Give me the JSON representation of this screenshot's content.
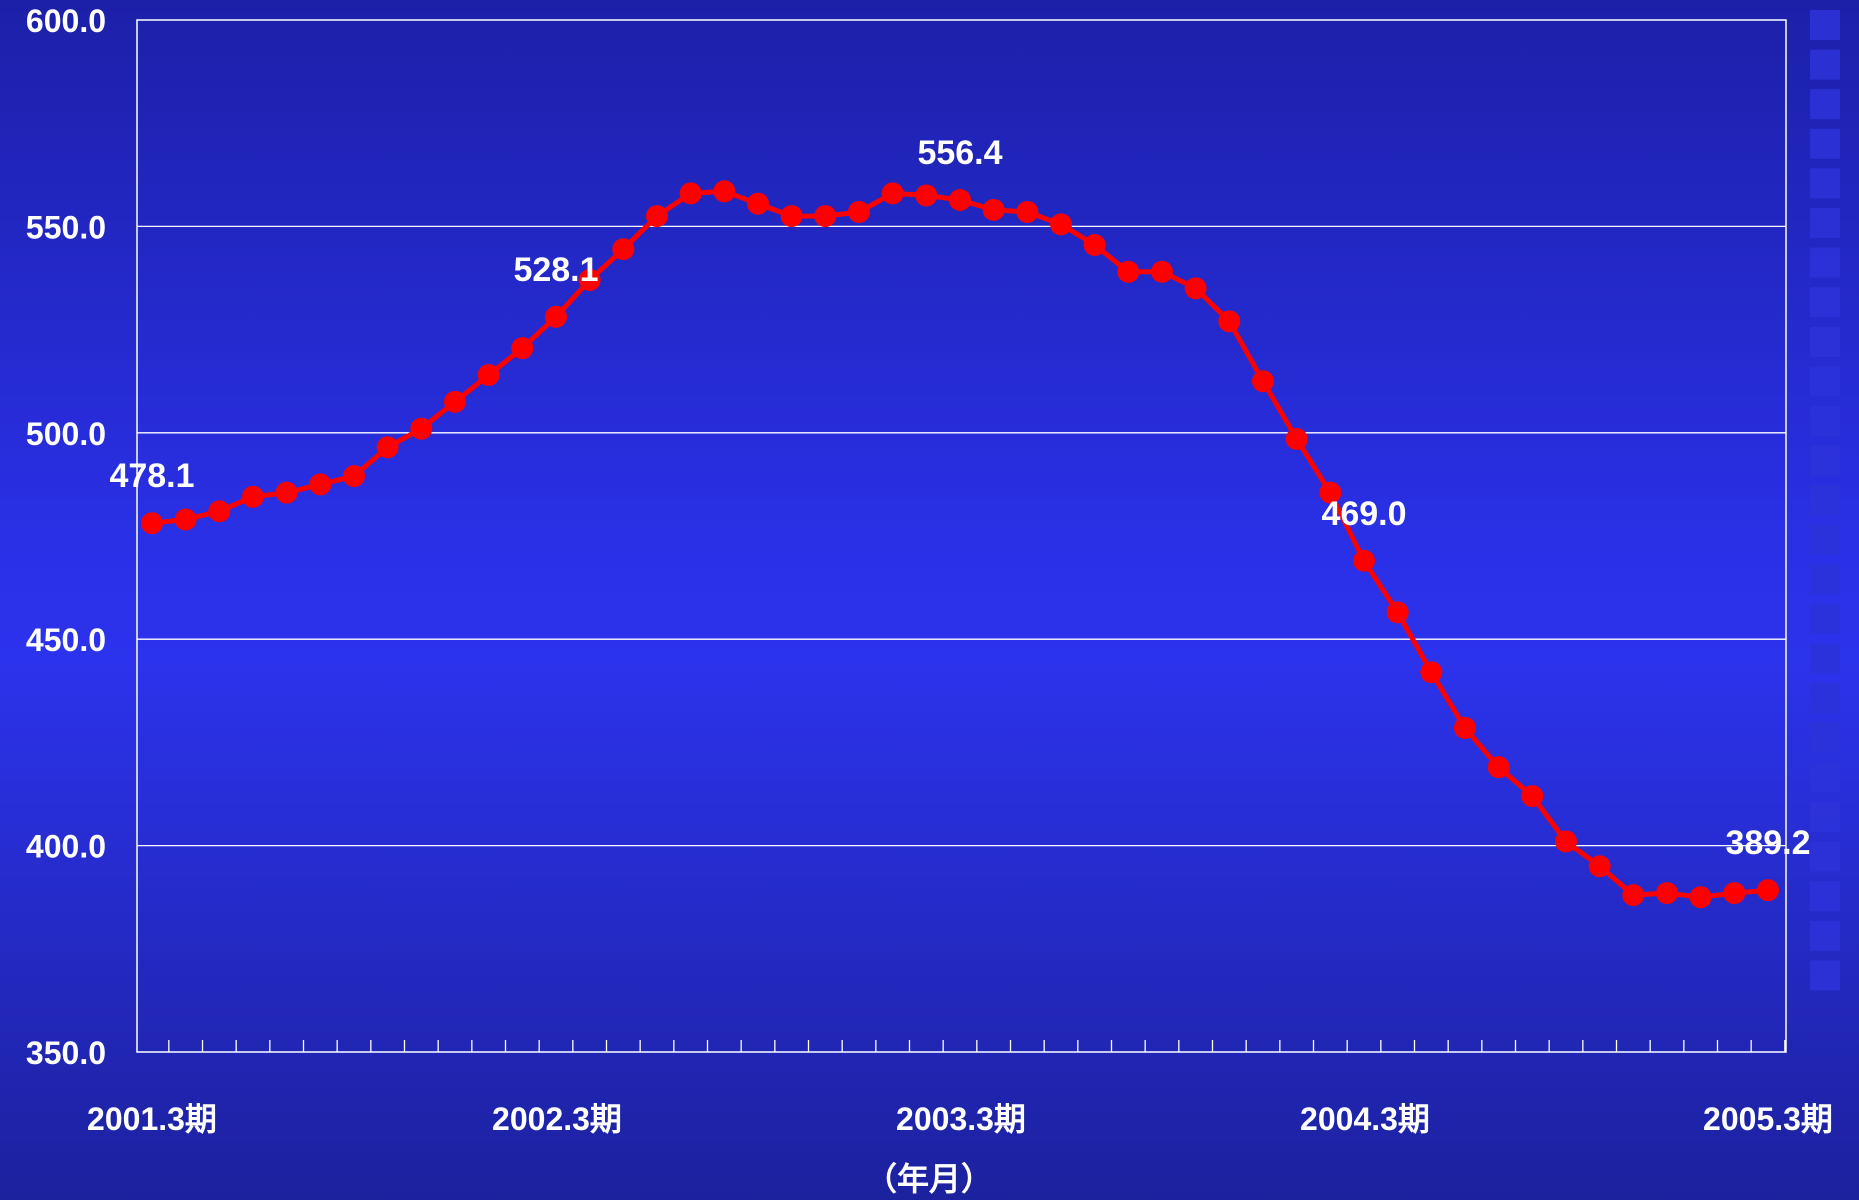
{
  "chart_data": {
    "type": "line",
    "title": "",
    "xlabel": "（年月）",
    "ylabel": "",
    "ylim": [
      350,
      600
    ],
    "yticks": [
      "350.0",
      "400.0",
      "450.0",
      "500.0",
      "550.0",
      "600.0"
    ],
    "xtick_labels": [
      "2001.3期",
      "2002.3期",
      "2003.3期",
      "2004.3期",
      "2005.3期"
    ],
    "grid": true,
    "legend": "none",
    "series": [
      {
        "values": [
          478.1,
          479.0,
          481.0,
          484.5,
          485.5,
          487.5,
          489.5,
          496.5,
          501.0,
          507.5,
          514.0,
          520.5,
          528.1,
          537.0,
          544.5,
          552.5,
          558.0,
          558.5,
          555.5,
          552.5,
          552.5,
          553.5,
          558.0,
          557.5,
          556.4,
          554.0,
          553.5,
          550.5,
          545.5,
          539.0,
          539.0,
          535.0,
          527.0,
          512.5,
          498.5,
          485.5,
          469.0,
          456.5,
          442.0,
          428.5,
          419.0,
          412.0,
          401.0,
          395.0,
          388.0,
          388.5,
          387.5,
          388.5,
          389.2
        ]
      }
    ],
    "data_labels": [
      {
        "index": 0,
        "text": "478.1"
      },
      {
        "index": 12,
        "text": "528.1"
      },
      {
        "index": 24,
        "text": "556.4"
      },
      {
        "index": 36,
        "text": "469.0"
      },
      {
        "index": 48,
        "text": "389.2"
      }
    ],
    "colors": {
      "line": "#ff0000",
      "marker": "#ff0000",
      "grid": "#ffffff",
      "text": "#ffffff",
      "side_squares": "#2d33d8"
    }
  }
}
